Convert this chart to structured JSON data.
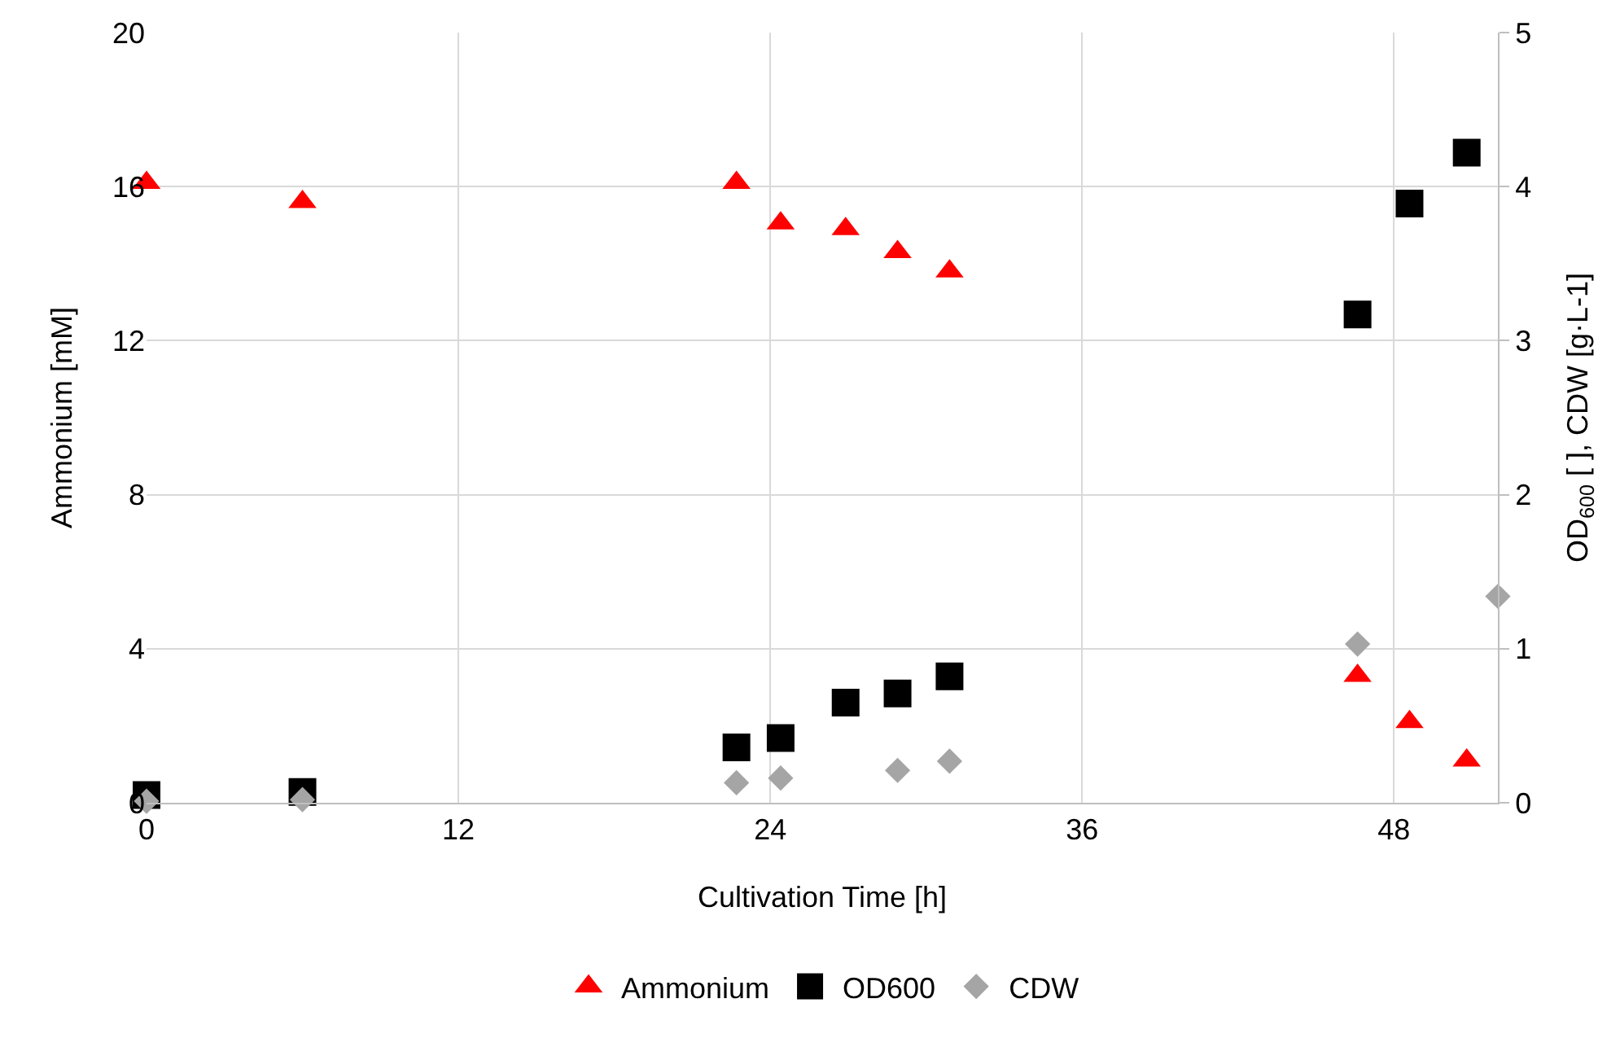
{
  "chart_data": {
    "type": "scatter",
    "xlabel": "Cultivation Time [h]",
    "ylabel": "Ammonium [mM]",
    "y2label": "OD$_{600}$ [ ], CDW [g·L-1]",
    "xlim": [
      0,
      52
    ],
    "xticks": [
      0,
      12,
      24,
      36,
      48
    ],
    "ylim": [
      0,
      20
    ],
    "yticks": [
      0,
      4,
      8,
      12,
      16,
      20
    ],
    "y2lim": [
      0,
      5
    ],
    "y2ticks": [
      0,
      1,
      2,
      3,
      4,
      5
    ],
    "grid": true,
    "legend": "bottom",
    "series": [
      {
        "name": "Ammonium",
        "color": "#ff0000",
        "marker": "triangle",
        "x": [
          0,
          6,
          22.7,
          24.4,
          26.9,
          28.9,
          30.9,
          46.6,
          48.6,
          50.8
        ],
        "values": [
          16.1,
          15.6,
          16.1,
          15.05,
          14.9,
          14.3,
          13.8,
          3.3,
          2.1,
          1.1
        ]
      },
      {
        "name": "OD600",
        "color": "#000000",
        "marker": "square",
        "axis": "y2",
        "x": [
          0,
          6,
          22.7,
          24.4,
          26.9,
          28.9,
          30.9,
          46.6,
          48.6,
          50.8
        ],
        "values": [
          0.05,
          0.07,
          0.36,
          0.42,
          0.65,
          0.71,
          0.82,
          3.17,
          3.89,
          4.22
        ]
      },
      {
        "name": "CDW",
        "color": "#a5a5a5",
        "marker": "diamond",
        "axis": "y2",
        "x": [
          0,
          6,
          22.7,
          24.4,
          28.9,
          30.9,
          46.6,
          52
        ],
        "values": [
          0.01,
          0.02,
          0.13,
          0.16,
          0.21,
          0.27,
          1.03,
          1.34
        ]
      }
    ]
  }
}
